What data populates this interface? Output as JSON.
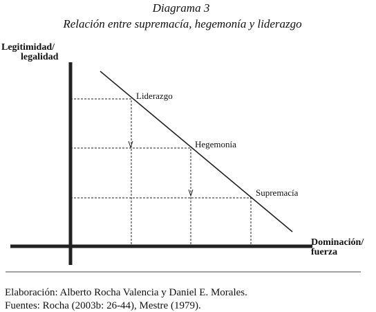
{
  "header": {
    "title": "Diagrama 3",
    "subtitle": "Relación entre supremacía, hegemonía y liderazgo"
  },
  "y_axis_label": [
    "Legitimidad/",
    "legalidad"
  ],
  "x_axis_label": [
    "Dominación/",
    "fuerza"
  ],
  "nodes": [
    {
      "label": "Liderazgo"
    },
    {
      "label": "Hegemonía"
    },
    {
      "label": "Supremacía"
    }
  ],
  "footer": [
    "Elaboración: Alberto Rocha Valencia y Daniel E. Morales.",
    "Fuentes: Rocha (2003b: 26-44), Mestre (1979)."
  ]
}
